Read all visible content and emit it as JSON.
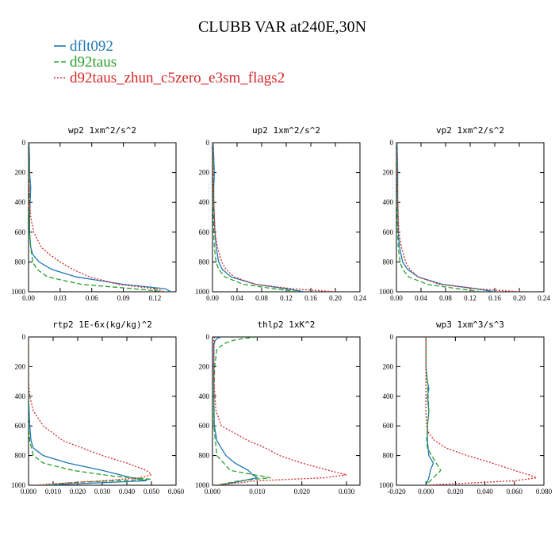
{
  "figure": {
    "title": "CLUBB VAR at240E,30N",
    "legend": [
      {
        "label": "dflt092",
        "color": "#1f77b4",
        "dash": "solid"
      },
      {
        "label": "d92taus",
        "color": "#2ca02c",
        "dash": "dashed"
      },
      {
        "label": "d92taus_zhun_c5zero_e3sm_flags2",
        "color": "#d62728",
        "dash": "dotted"
      }
    ]
  },
  "chart_data": [
    {
      "type": "line",
      "title": "wp2  1xm^2/s^2",
      "xlim": [
        0,
        0.14
      ],
      "xticks": [
        "0.00",
        "0.03",
        "0.06",
        "0.09",
        "0.12"
      ],
      "ylim": [
        0,
        1000
      ],
      "yticks": [
        "0",
        "200",
        "400",
        "600",
        "800",
        "1000"
      ],
      "y_inverted": true,
      "series": [
        {
          "name": "dflt092",
          "p": [
            0,
            100,
            200,
            300,
            400,
            500,
            600,
            700,
            750,
            800,
            850,
            900,
            950,
            980,
            1000
          ],
          "v": [
            0.0005,
            0.001,
            0.001,
            0.002,
            0.0015,
            0.001,
            0.001,
            0.002,
            0.004,
            0.01,
            0.022,
            0.045,
            0.09,
            0.13,
            0.135
          ]
        },
        {
          "name": "d92taus",
          "p": [
            0,
            200,
            400,
            600,
            700,
            800,
            850,
            900,
            950,
            980,
            1000
          ],
          "v": [
            0,
            0.0005,
            0.001,
            0.001,
            0.002,
            0.004,
            0.008,
            0.018,
            0.05,
            0.1,
            0.13
          ]
        },
        {
          "name": "d92taus_zhun_c5zero_e3sm_flags2",
          "p": [
            0,
            200,
            400,
            500,
            600,
            700,
            750,
            800,
            850,
            900,
            950,
            980,
            1000
          ],
          "v": [
            0,
            0,
            0.001,
            0.002,
            0.005,
            0.012,
            0.02,
            0.03,
            0.042,
            0.058,
            0.085,
            0.12,
            0.13
          ]
        }
      ]
    },
    {
      "type": "line",
      "title": "up2  1xm^2/s^2",
      "xlim": [
        0,
        0.24
      ],
      "xticks": [
        "0.00",
        "0.04",
        "0.08",
        "0.12",
        "0.16",
        "0.20",
        "0.24"
      ],
      "ylim": [
        0,
        1000
      ],
      "yticks": [
        "0",
        "200",
        "400",
        "600",
        "800",
        "1000"
      ],
      "y_inverted": true,
      "series": [
        {
          "name": "dflt092",
          "p": [
            0,
            100,
            200,
            300,
            400,
            500,
            600,
            700,
            800,
            850,
            900,
            950,
            980,
            1000
          ],
          "v": [
            0.001,
            0.002,
            0.003,
            0.002,
            0.002,
            0.003,
            0.004,
            0.006,
            0.01,
            0.016,
            0.03,
            0.07,
            0.12,
            0.15
          ]
        },
        {
          "name": "d92taus",
          "p": [
            0,
            200,
            400,
            600,
            700,
            800,
            850,
            900,
            950,
            980,
            1000
          ],
          "v": [
            0,
            0.001,
            0.001,
            0.002,
            0.003,
            0.006,
            0.01,
            0.02,
            0.05,
            0.1,
            0.14
          ]
        },
        {
          "name": "d92taus_zhun_c5zero_e3sm_flags2",
          "p": [
            0,
            200,
            400,
            600,
            700,
            800,
            850,
            900,
            950,
            980,
            1000
          ],
          "v": [
            0,
            0.001,
            0.002,
            0.004,
            0.008,
            0.015,
            0.022,
            0.035,
            0.07,
            0.13,
            0.2
          ]
        }
      ]
    },
    {
      "type": "line",
      "title": "vp2  1xm^2/s^2",
      "xlim": [
        0,
        0.24
      ],
      "xticks": [
        "0.00",
        "0.04",
        "0.08",
        "0.12",
        "0.16",
        "0.20",
        "0.24"
      ],
      "ylim": [
        0,
        1000
      ],
      "yticks": [
        "0",
        "200",
        "400",
        "600",
        "800",
        "1000"
      ],
      "y_inverted": true,
      "series": [
        {
          "name": "dflt092",
          "p": [
            0,
            200,
            400,
            600,
            700,
            800,
            850,
            900,
            950,
            980,
            1000
          ],
          "v": [
            0.001,
            0.002,
            0.002,
            0.003,
            0.005,
            0.01,
            0.018,
            0.035,
            0.075,
            0.13,
            0.16
          ]
        },
        {
          "name": "d92taus",
          "p": [
            0,
            200,
            400,
            600,
            700,
            800,
            850,
            900,
            950,
            980,
            1000
          ],
          "v": [
            0,
            0.001,
            0.001,
            0.002,
            0.003,
            0.006,
            0.01,
            0.02,
            0.05,
            0.1,
            0.14
          ]
        },
        {
          "name": "d92taus_zhun_c5zero_e3sm_flags2",
          "p": [
            0,
            200,
            400,
            600,
            700,
            800,
            850,
            900,
            950,
            980,
            1000
          ],
          "v": [
            0,
            0.001,
            0.002,
            0.004,
            0.008,
            0.015,
            0.022,
            0.035,
            0.07,
            0.13,
            0.2
          ]
        }
      ]
    },
    {
      "type": "line",
      "title": "rtp2  1E-6x(kg/kg)^2",
      "xlim": [
        0,
        0.06
      ],
      "xticks": [
        "0.000",
        "0.010",
        "0.020",
        "0.030",
        "0.040",
        "0.050",
        "0.060"
      ],
      "ylim": [
        0,
        1000
      ],
      "yticks": [
        "0",
        "200",
        "400",
        "600",
        "800",
        "1000"
      ],
      "y_inverted": true,
      "series": [
        {
          "name": "dflt092",
          "p": [
            0,
            200,
            400,
            600,
            700,
            750,
            800,
            850,
            900,
            950,
            970,
            990,
            1000
          ],
          "v": [
            0,
            0,
            0,
            0.0005,
            0.001,
            0.002,
            0.006,
            0.016,
            0.03,
            0.042,
            0.048,
            0.02,
            0.005
          ]
        },
        {
          "name": "d92taus",
          "p": [
            0,
            200,
            400,
            600,
            700,
            800,
            850,
            900,
            940,
            960,
            980,
            1000
          ],
          "v": [
            0,
            0,
            0,
            0,
            0.0005,
            0.002,
            0.006,
            0.018,
            0.035,
            0.05,
            0.02,
            0.005
          ]
        },
        {
          "name": "d92taus_zhun_c5zero_e3sm_flags2",
          "p": [
            0,
            300,
            400,
            500,
            600,
            700,
            800,
            850,
            900,
            930,
            950,
            970,
            990,
            1000
          ],
          "v": [
            0,
            0,
            0.0005,
            0.002,
            0.006,
            0.014,
            0.03,
            0.04,
            0.048,
            0.05,
            0.045,
            0.03,
            0.01,
            0.003
          ]
        }
      ]
    },
    {
      "type": "line",
      "title": "thlp2  1xK^2",
      "xlim": [
        0,
        0.033
      ],
      "xticks": [
        "0.000",
        "0.010",
        "0.020",
        "0.030"
      ],
      "ylim": [
        0,
        1000
      ],
      "yticks": [
        "0",
        "200",
        "400",
        "600",
        "800",
        "1000"
      ],
      "y_inverted": true,
      "series": [
        {
          "name": "dflt092",
          "p": [
            0,
            10,
            30,
            60,
            100,
            200,
            400,
            600,
            700,
            800,
            850,
            900,
            930,
            950,
            980,
            1000
          ],
          "v": [
            0.002,
            0.001,
            0.0005,
            0.0003,
            0.0003,
            0.0003,
            0.0003,
            0.0004,
            0.001,
            0.003,
            0.005,
            0.008,
            0.009,
            0.01,
            0.005,
            0.001
          ]
        },
        {
          "name": "d92taus",
          "p": [
            0,
            10,
            20,
            40,
            80,
            200,
            400,
            600,
            800,
            900,
            950,
            970,
            1000
          ],
          "v": [
            0.01,
            0.007,
            0.005,
            0.003,
            0.001,
            0.0005,
            0.0003,
            0.0003,
            0.001,
            0.004,
            0.013,
            0.006,
            0.001
          ]
        },
        {
          "name": "d92taus_zhun_c5zero_e3sm_flags2",
          "p": [
            0,
            10,
            30,
            60,
            100,
            300,
            500,
            600,
            700,
            750,
            800,
            850,
            900,
            930,
            950,
            970,
            1000
          ],
          "v": [
            0.0005,
            0.0004,
            0.0003,
            0.0003,
            0.0003,
            0.0003,
            0.0008,
            0.002,
            0.008,
            0.012,
            0.015,
            0.02,
            0.026,
            0.03,
            0.025,
            0.01,
            0.001
          ]
        }
      ]
    },
    {
      "type": "line",
      "title": "wp3  1xm^3/s^3",
      "xlim": [
        -0.02,
        0.08
      ],
      "xticks": [
        "-0.020",
        "0.000",
        "0.020",
        "0.040",
        "0.060",
        "0.080"
      ],
      "ylim": [
        0,
        1000
      ],
      "yticks": [
        "0",
        "200",
        "400",
        "600",
        "800",
        "1000"
      ],
      "y_inverted": true,
      "series": [
        {
          "name": "dflt092",
          "p": [
            0,
            100,
            200,
            300,
            350,
            400,
            500,
            600,
            700,
            800,
            850,
            900,
            950,
            1000
          ],
          "v": [
            0,
            0,
            0,
            0.001,
            0.002,
            0.001,
            0.002,
            0.001,
            0.001,
            0.002,
            0.005,
            0.003,
            0.002,
            0
          ]
        },
        {
          "name": "d92taus",
          "p": [
            0,
            200,
            300,
            400,
            500,
            600,
            700,
            750,
            800,
            850,
            900,
            950,
            1000
          ],
          "v": [
            0,
            0,
            0.001,
            0.0015,
            0.002,
            0.001,
            0.0005,
            0.001,
            0.004,
            0.007,
            0.01,
            0.005,
            0
          ]
        },
        {
          "name": "d92taus_zhun_c5zero_e3sm_flags2",
          "p": [
            0,
            200,
            300,
            400,
            500,
            600,
            650,
            700,
            750,
            800,
            850,
            900,
            930,
            950,
            970,
            990,
            1000
          ],
          "v": [
            0,
            0,
            0,
            0,
            0,
            0.0005,
            0.002,
            0.006,
            0.014,
            0.028,
            0.045,
            0.06,
            0.07,
            0.075,
            0.06,
            0.02,
            0
          ]
        }
      ]
    }
  ]
}
